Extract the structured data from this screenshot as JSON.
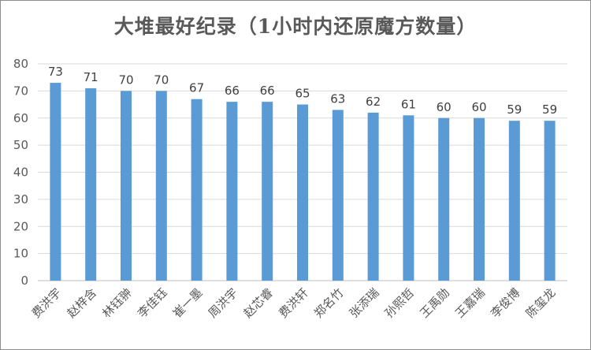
{
  "chart_data": {
    "type": "bar",
    "title": "大堆最好纪录（1小时内还原魔方数量）",
    "categories": [
      "费洪宇",
      "赵梓含",
      "林钰翀",
      "李佳钰",
      "崔一墨",
      "周洪宇",
      "赵芯睿",
      "费洪轩",
      "郑名竹",
      "张添瑞",
      "孙熙哲",
      "王禹勋",
      "王嘉瑞",
      "李俊博",
      "陈玺龙"
    ],
    "values": [
      73,
      71,
      70,
      70,
      67,
      66,
      66,
      65,
      63,
      62,
      61,
      60,
      60,
      59,
      59
    ],
    "ylim": [
      0,
      80
    ],
    "yticks": [
      0,
      10,
      20,
      30,
      40,
      50,
      60,
      70,
      80
    ],
    "grid": true,
    "bar_color": "#5b9bd5"
  }
}
